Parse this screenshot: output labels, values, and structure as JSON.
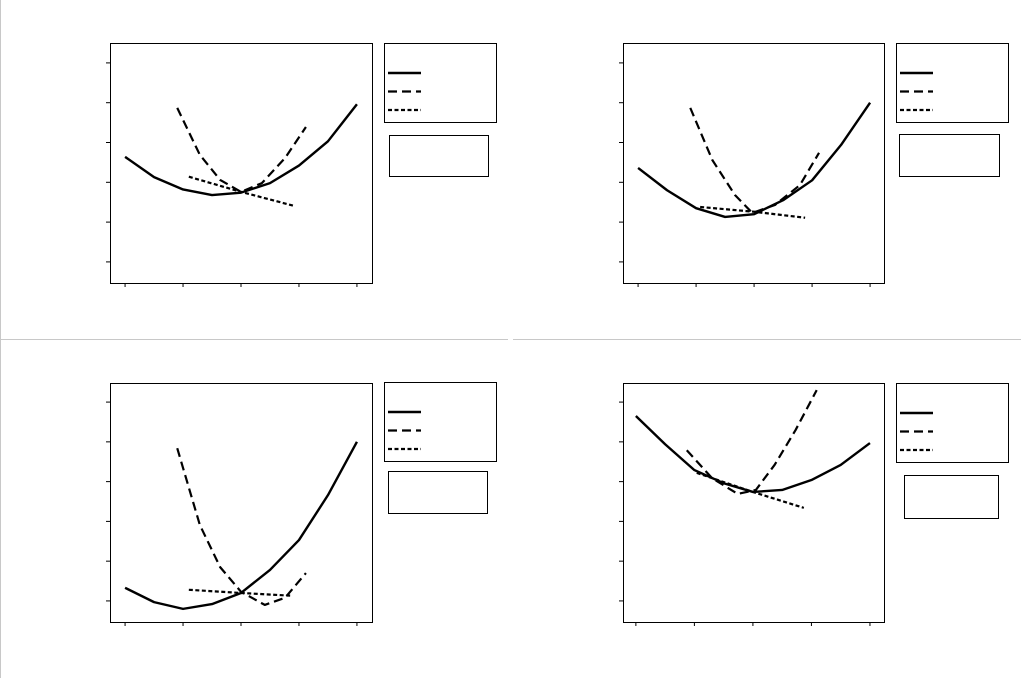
{
  "chart_data": [
    {
      "type": "line",
      "xlim": [
        -0.26,
        4.26
      ],
      "ylim": [
        -0.53,
        5.5
      ],
      "xticks": [
        0,
        1,
        2,
        3,
        4
      ],
      "yticks": [
        0,
        1,
        2,
        3,
        4,
        5
      ],
      "grid": false,
      "legend": "right",
      "series": [
        {
          "color": "#000000",
          "dash": "solid",
          "x": [
            0,
            0.5,
            1,
            1.5,
            2,
            2.5,
            3,
            3.5,
            4
          ],
          "values": [
            2.64,
            2.13,
            1.82,
            1.68,
            1.74,
            1.98,
            2.42,
            3.03,
            3.96
          ]
        },
        {
          "color": "#000000",
          "dash": "dashed",
          "x": [
            0.9,
            1.29,
            1.64,
            2,
            2.36,
            2.76,
            3.12
          ],
          "values": [
            3.87,
            2.69,
            2.06,
            1.76,
            1.98,
            2.61,
            3.39
          ]
        },
        {
          "color": "#000000",
          "dash": "dotted",
          "x": [
            1.1,
            2,
            2.91
          ],
          "values": [
            2.14,
            1.76,
            1.41
          ]
        }
      ]
    },
    {
      "type": "line",
      "xlim": [
        -0.26,
        4.24
      ],
      "ylim": [
        -0.53,
        5.5
      ],
      "xticks": [
        0,
        1,
        2,
        3,
        4
      ],
      "yticks": [
        0,
        1,
        2,
        3,
        4,
        5
      ],
      "grid": false,
      "legend": "right",
      "series": [
        {
          "color": "#000000",
          "dash": "solid",
          "x": [
            0,
            0.5,
            1,
            1.5,
            2,
            2.5,
            3,
            3.5,
            4
          ],
          "values": [
            2.36,
            1.8,
            1.35,
            1.13,
            1.2,
            1.55,
            2.05,
            2.94,
            4.0
          ]
        },
        {
          "color": "#000000",
          "dash": "dashed",
          "x": [
            0.9,
            1.28,
            1.67,
            1.97,
            2.36,
            2.79,
            3.12
          ],
          "values": [
            3.87,
            2.56,
            1.68,
            1.23,
            1.43,
            1.93,
            2.74
          ]
        },
        {
          "color": "#000000",
          "dash": "dotted",
          "x": [
            1.07,
            2,
            2.88
          ],
          "values": [
            1.38,
            1.26,
            1.11
          ]
        }
      ]
    },
    {
      "type": "line",
      "xlim": [
        -0.26,
        4.26
      ],
      "ylim": [
        -0.53,
        5.48
      ],
      "xticks": [
        0,
        1,
        2,
        3,
        4
      ],
      "yticks": [
        0,
        1,
        2,
        3,
        4,
        5
      ],
      "grid": false,
      "legend": "right",
      "series": [
        {
          "color": "#000000",
          "dash": "solid",
          "x": [
            0,
            0.5,
            1,
            1.5,
            2,
            2.5,
            3,
            3.5,
            4
          ],
          "values": [
            0.33,
            -0.03,
            -0.2,
            -0.08,
            0.2,
            0.78,
            1.53,
            2.66,
            4.0
          ]
        },
        {
          "color": "#000000",
          "dash": "dashed",
          "x": [
            0.9,
            1.29,
            1.64,
            2,
            2.41,
            2.76,
            3.12
          ],
          "values": [
            3.84,
            1.91,
            0.85,
            0.23,
            -0.1,
            0.08,
            0.7
          ]
        },
        {
          "color": "#000000",
          "dash": "dotted",
          "x": [
            1.1,
            2,
            2.88
          ],
          "values": [
            0.28,
            0.2,
            0.13
          ]
        }
      ]
    },
    {
      "type": "line",
      "xlim": [
        -0.22,
        4.24
      ],
      "ylim": [
        -0.53,
        5.48
      ],
      "xticks": [
        0,
        1,
        2,
        3,
        4
      ],
      "yticks": [
        0,
        1,
        2,
        3,
        4,
        5
      ],
      "grid": false,
      "legend": "right",
      "series": [
        {
          "color": "#000000",
          "dash": "solid",
          "x": [
            0,
            0.5,
            1,
            1.5,
            2,
            2.5,
            3,
            3.5,
            4
          ],
          "values": [
            4.65,
            3.94,
            3.29,
            2.96,
            2.74,
            2.79,
            3.04,
            3.42,
            3.97
          ]
        },
        {
          "color": "#000000",
          "dash": "dashed",
          "x": [
            0.87,
            1.3,
            1.74,
            2.05,
            2.37,
            2.73,
            3.09
          ],
          "values": [
            3.79,
            3.09,
            2.69,
            2.79,
            3.42,
            4.3,
            5.3
          ]
        },
        {
          "color": "#000000",
          "dash": "dotted",
          "x": [
            1.04,
            2,
            2.87
          ],
          "values": [
            3.22,
            2.74,
            2.34
          ]
        }
      ]
    }
  ]
}
